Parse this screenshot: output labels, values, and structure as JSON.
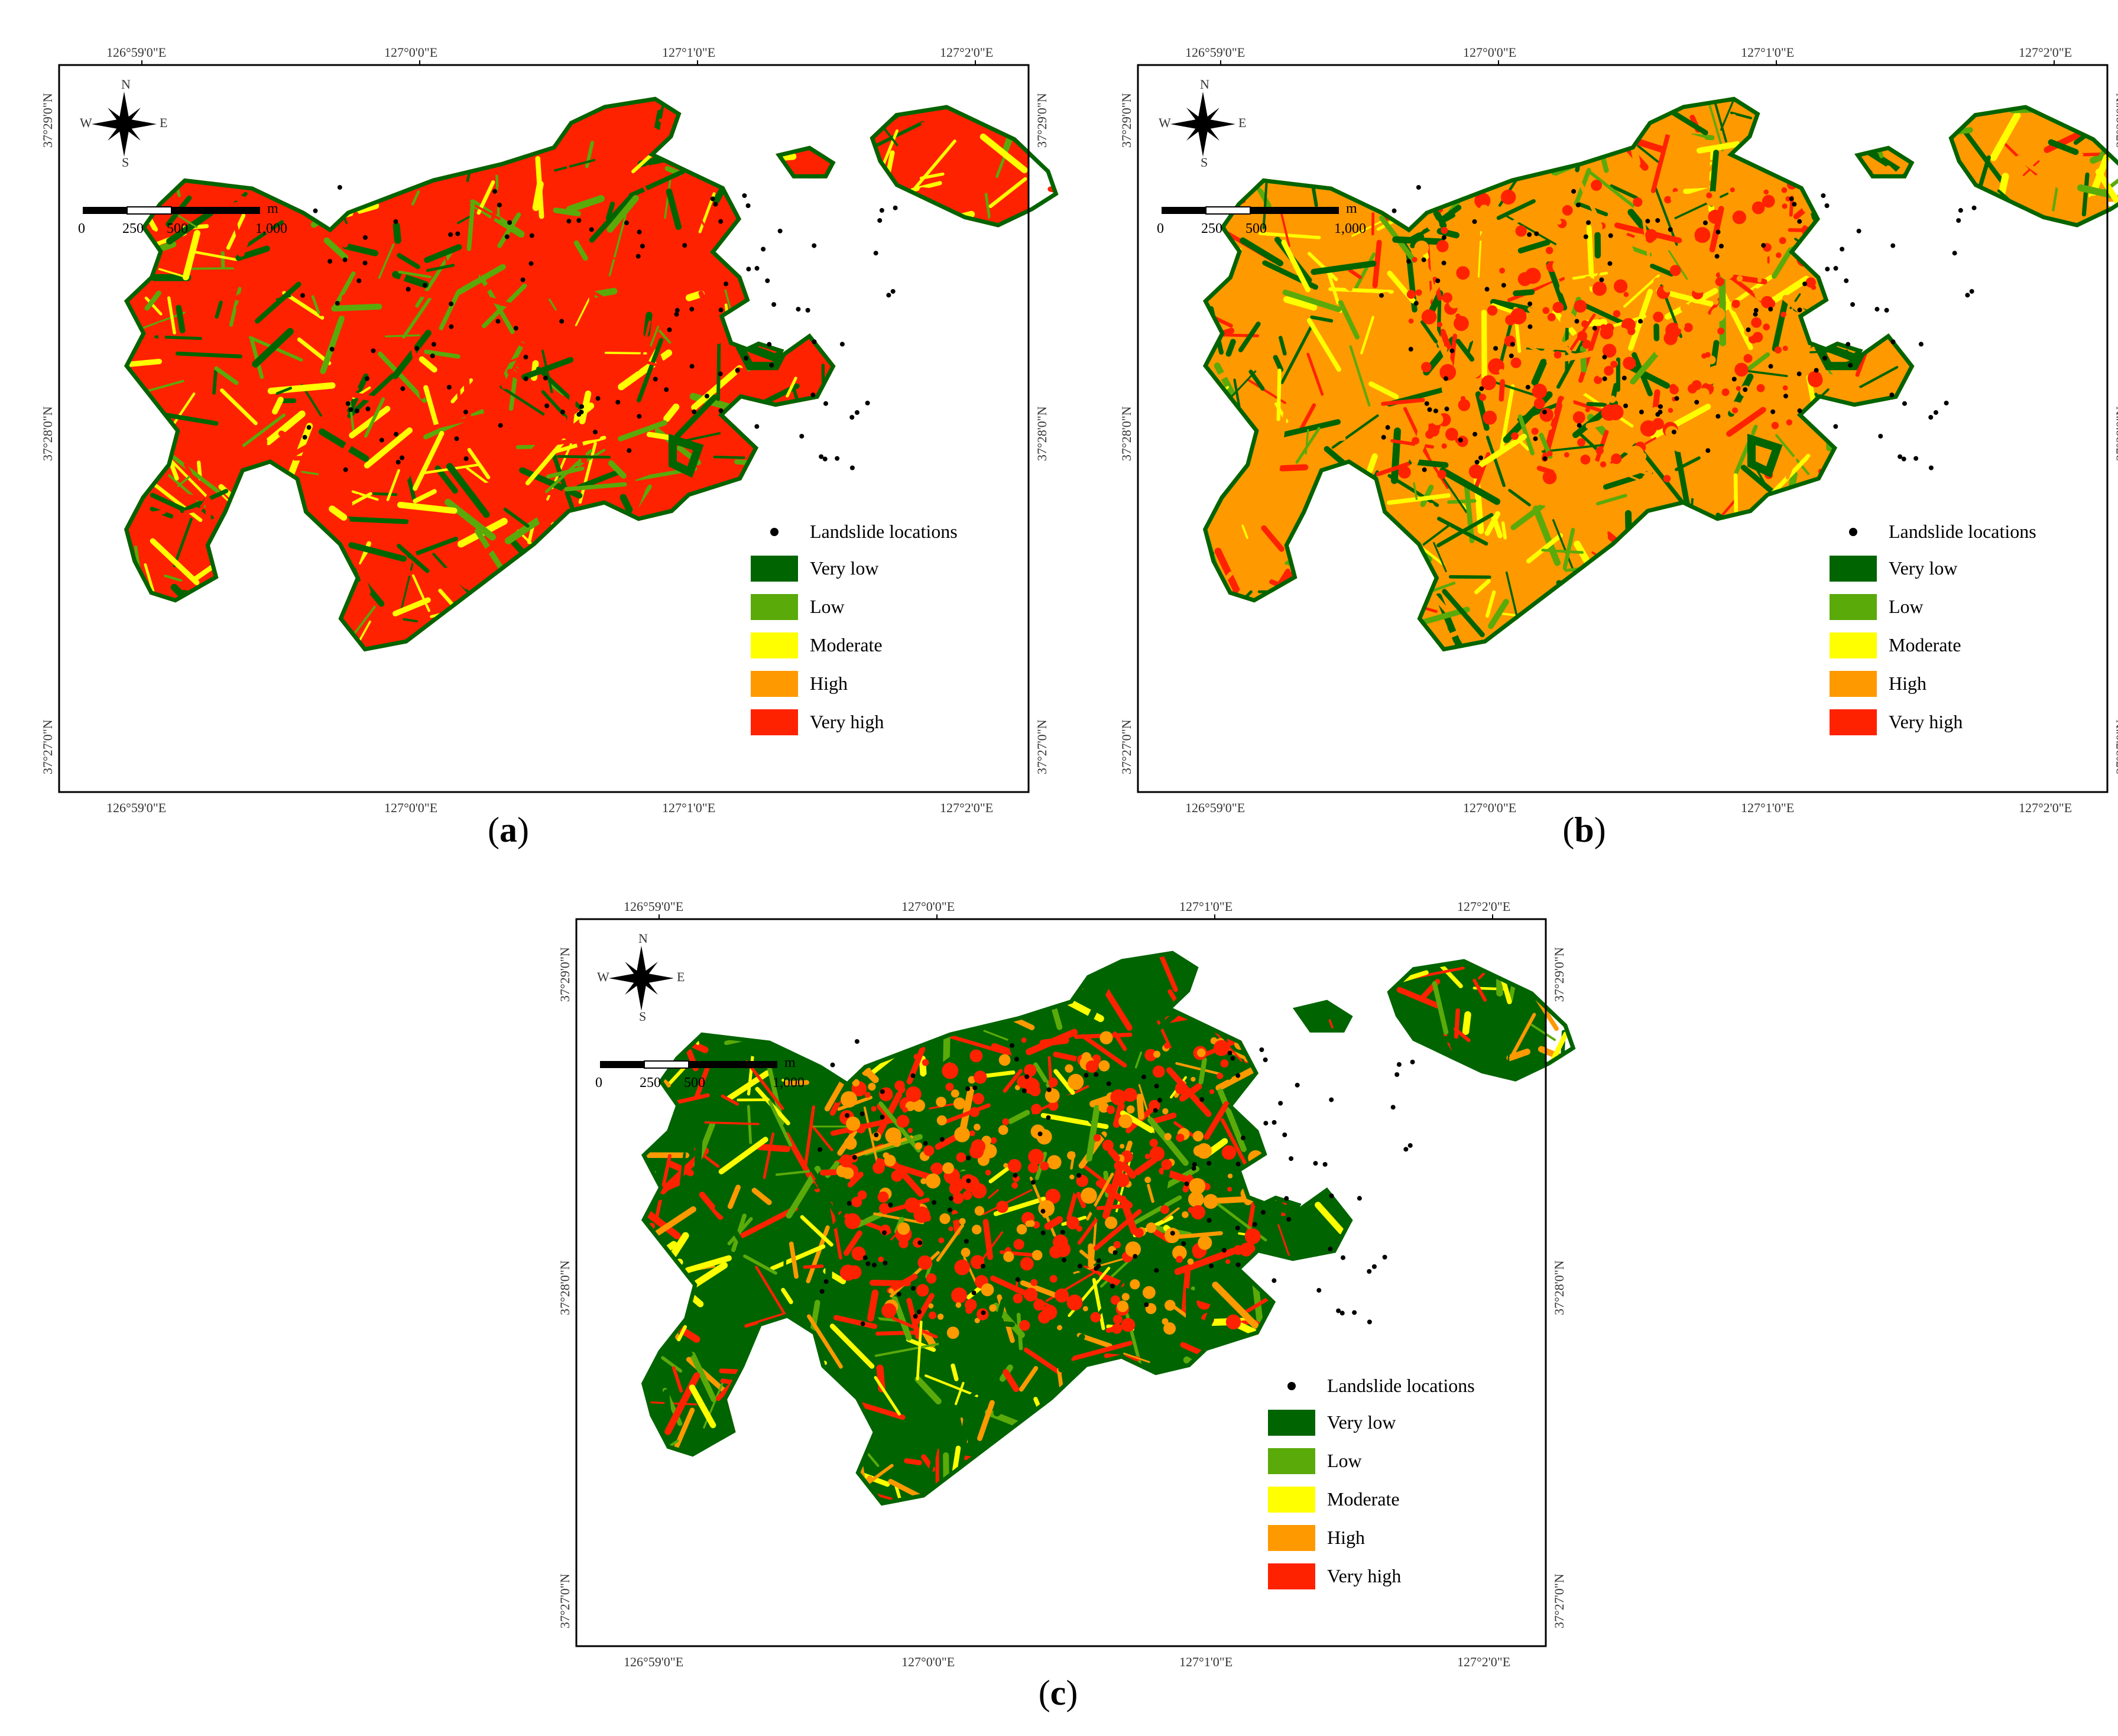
{
  "panels": [
    {
      "id": "a",
      "caption_letter": "a",
      "dominant": "red"
    },
    {
      "id": "b",
      "caption_letter": "b",
      "dominant": "orange"
    },
    {
      "id": "c",
      "caption_letter": "c",
      "dominant": "mixed"
    }
  ],
  "axis_labels": {
    "top": [
      "126°59'0\"E",
      "127°0'0\"E",
      "127°1'0\"E",
      "127°2'0\"E"
    ],
    "bottom": [
      "126°59'0\"E",
      "127°0'0\"E",
      "127°1'0\"E",
      "127°2'0\"E"
    ],
    "left": [
      "37°29'0\"N",
      "37°28'0\"N",
      "37°27'0\"N"
    ],
    "right": [
      "37°29'0\"N",
      "37°28'0\"N",
      "37°27'0\"N"
    ]
  },
  "compass": {
    "n": "N",
    "s": "S",
    "e": "E",
    "w": "W"
  },
  "scale_bar": {
    "unit": "m",
    "ticks": [
      "0",
      "250",
      "500",
      "1,000"
    ]
  },
  "legend": {
    "points_label": "Landslide locations",
    "classes": [
      {
        "label": "Very low",
        "color": "#006400"
      },
      {
        "label": "Low",
        "color": "#5aaa0a"
      },
      {
        "label": "Moderate",
        "color": "#ffff00"
      },
      {
        "label": "High",
        "color": "#ff9900"
      },
      {
        "label": "Very high",
        "color": "#ff2200"
      }
    ]
  },
  "colors": {
    "very_low": "#006400",
    "low": "#5aaa0a",
    "moderate": "#ffff00",
    "high": "#ff9900",
    "very_high": "#ff2200",
    "point": "#000000"
  }
}
